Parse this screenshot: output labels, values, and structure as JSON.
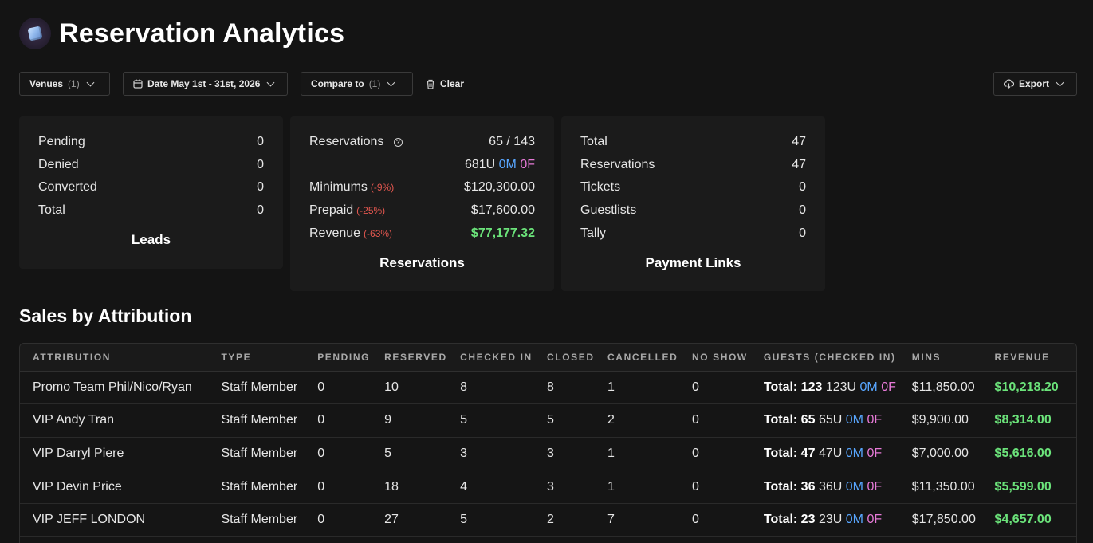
{
  "header": {
    "title": "Reservation Analytics",
    "logo_icon": "cube-icon"
  },
  "toolbar": {
    "venues": {
      "label": "Venues",
      "count": "(1)"
    },
    "date": {
      "label": "Date May 1st - 31st, 2026"
    },
    "compare": {
      "label": "Compare to",
      "count": "(1)"
    },
    "clear": {
      "label": "Clear"
    },
    "export": {
      "label": "Export"
    }
  },
  "leads": {
    "title": "Leads",
    "rows": [
      {
        "label": "Pending",
        "value": "0"
      },
      {
        "label": "Denied",
        "value": "0"
      },
      {
        "label": "Converted",
        "value": "0"
      },
      {
        "label": "Total",
        "value": "0"
      }
    ]
  },
  "reservations": {
    "title": "Reservations",
    "reservations_label": "Reservations",
    "reservations_value": "65 / 143",
    "guests_u": "681U",
    "guests_m": "0M",
    "guests_f": "0F",
    "minimums_label": "Minimums",
    "minimums_change": "(-9%)",
    "minimums_value": "$120,300.00",
    "prepaid_label": "Prepaid",
    "prepaid_change": "(-25%)",
    "prepaid_value": "$17,600.00",
    "revenue_label": "Revenue",
    "revenue_change": "(-63%)",
    "revenue_value": "$77,177.32"
  },
  "payment_links": {
    "title": "Payment Links",
    "rows": [
      {
        "label": "Total",
        "value": "47"
      },
      {
        "label": "Reservations",
        "value": "47"
      },
      {
        "label": "Tickets",
        "value": "0"
      },
      {
        "label": "Guestlists",
        "value": "0"
      },
      {
        "label": "Tally",
        "value": "0"
      }
    ]
  },
  "sales": {
    "title": "Sales by Attribution",
    "columns": [
      "ATTRIBUTION",
      "TYPE",
      "PENDING",
      "RESERVED",
      "CHECKED IN",
      "CLOSED",
      "CANCELLED",
      "NO SHOW",
      "GUESTS (CHECKED IN)",
      "MINS",
      "REVENUE"
    ],
    "rows": [
      {
        "attribution": "Promo Team Phil/Nico/Ryan",
        "type": "Staff Member",
        "pending": "0",
        "reserved": "10",
        "checked_in": "8",
        "closed": "8",
        "cancelled": "1",
        "no_show": "0",
        "guests_total": "Total: 123",
        "guests_u": "123U",
        "guests_m": "0M",
        "guests_f": "0F",
        "mins": "$11,850.00",
        "revenue": "$10,218.20"
      },
      {
        "attribution": "VIP Andy Tran",
        "type": "Staff Member",
        "pending": "0",
        "reserved": "9",
        "checked_in": "5",
        "closed": "5",
        "cancelled": "2",
        "no_show": "0",
        "guests_total": "Total: 65",
        "guests_u": "65U",
        "guests_m": "0M",
        "guests_f": "0F",
        "mins": "$9,900.00",
        "revenue": "$8,314.00"
      },
      {
        "attribution": "VIP Darryl Piere",
        "type": "Staff Member",
        "pending": "0",
        "reserved": "5",
        "checked_in": "3",
        "closed": "3",
        "cancelled": "1",
        "no_show": "0",
        "guests_total": "Total: 47",
        "guests_u": "47U",
        "guests_m": "0M",
        "guests_f": "0F",
        "mins": "$7,000.00",
        "revenue": "$5,616.00"
      },
      {
        "attribution": "VIP Devin Price",
        "type": "Staff Member",
        "pending": "0",
        "reserved": "18",
        "checked_in": "4",
        "closed": "3",
        "cancelled": "1",
        "no_show": "0",
        "guests_total": "Total: 36",
        "guests_u": "36U",
        "guests_m": "0M",
        "guests_f": "0F",
        "mins": "$11,350.00",
        "revenue": "$5,599.00"
      },
      {
        "attribution": "VIP JEFF LONDON",
        "type": "Staff Member",
        "pending": "0",
        "reserved": "27",
        "checked_in": "5",
        "closed": "2",
        "cancelled": "7",
        "no_show": "0",
        "guests_total": "Total: 23",
        "guests_u": "23U",
        "guests_m": "0M",
        "guests_f": "0F",
        "mins": "$17,850.00",
        "revenue": "$4,657.00"
      }
    ]
  }
}
